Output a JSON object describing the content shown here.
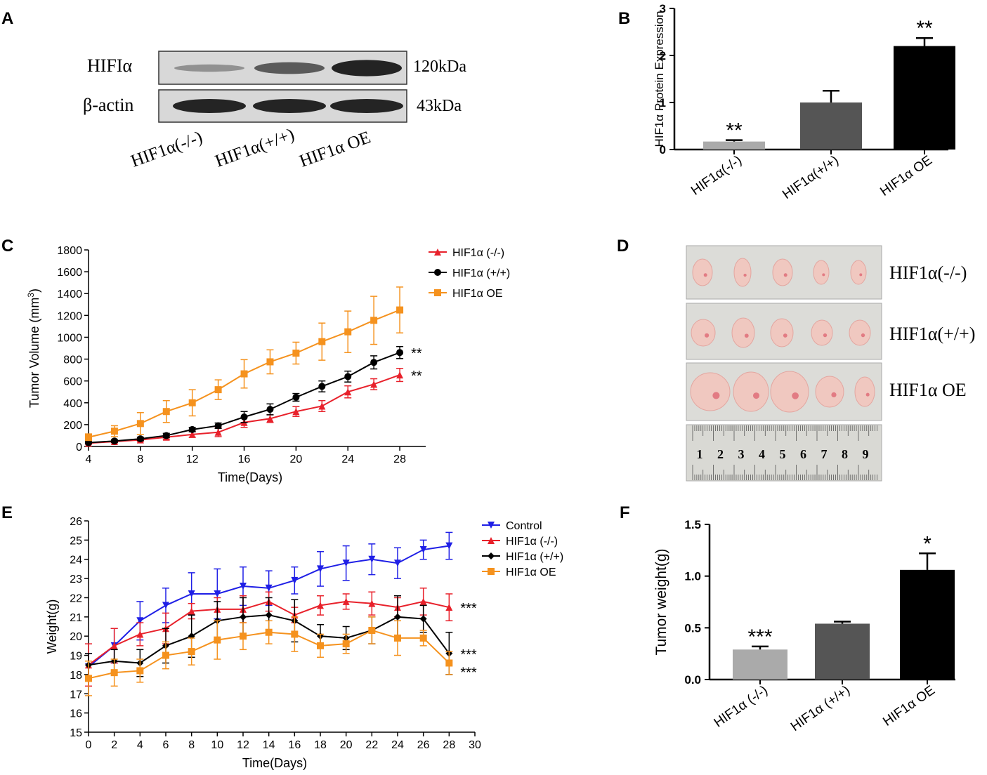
{
  "panels": {
    "A": {
      "letter": "A",
      "rows": [
        {
          "label": "HIFIα",
          "size": "120kDa"
        },
        {
          "label": "β-actin",
          "size": "43kDa"
        }
      ],
      "lanes": [
        "HIF1α(-/-)",
        "HIF1α(+/+)",
        "HIF1α OE"
      ],
      "band_intensity": {
        "HIFIα": [
          0.15,
          0.55,
          0.95
        ],
        "β-actin": [
          1,
          1,
          1
        ]
      }
    },
    "D": {
      "letter": "D",
      "rows": [
        "HIF1α(-/-)",
        "HIF1α(+/+)",
        "HIF1α OE"
      ],
      "ruler_numbers": [
        "1",
        "2",
        "3",
        "4",
        "5",
        "6",
        "7",
        "8",
        "9"
      ],
      "colors": {
        "tumor": "#f0c8c0",
        "tumor_spot": "#d9485a",
        "background": "#dcdcd8",
        "ruler": "#d9d9d4"
      }
    }
  },
  "chart_data": [
    {
      "id": "B",
      "letter": "B",
      "type": "bar",
      "categories": [
        "HIF1α(-/-)",
        "HIF1α(+/+)",
        "HIF1α OE"
      ],
      "values": [
        0.17,
        1.0,
        2.2
      ],
      "errors": [
        0.03,
        0.25,
        0.17
      ],
      "significance": [
        "**",
        "",
        "**"
      ],
      "colors": [
        "#aaaaaa",
        "#555555",
        "#000000"
      ],
      "ylabel": "HIF1α Protein Expression",
      "xlabel": "",
      "ylim": [
        0,
        3
      ],
      "yticks": [
        "0",
        "1",
        "2",
        "3"
      ]
    },
    {
      "id": "C",
      "letter": "C",
      "type": "line",
      "x": [
        4,
        6,
        8,
        10,
        12,
        14,
        16,
        18,
        20,
        22,
        24,
        26,
        28
      ],
      "series": [
        {
          "name": "HIF1α (-/-)",
          "color": "#e8212b",
          "marker": "triangle",
          "values": [
            30,
            45,
            60,
            85,
            110,
            130,
            220,
            255,
            320,
            370,
            500,
            570,
            655
          ],
          "errors": [
            10,
            12,
            15,
            20,
            25,
            40,
            45,
            35,
            45,
            50,
            55,
            50,
            60
          ]
        },
        {
          "name": "HIF1α (+/+)",
          "color": "#000000",
          "marker": "circle",
          "values": [
            35,
            50,
            70,
            100,
            155,
            190,
            270,
            340,
            450,
            550,
            640,
            770,
            860
          ],
          "errors": [
            10,
            12,
            15,
            20,
            20,
            25,
            50,
            50,
            35,
            50,
            50,
            60,
            55
          ]
        },
        {
          "name": "HIF1α OE",
          "color": "#f5921e",
          "marker": "square",
          "values": [
            85,
            140,
            210,
            320,
            400,
            520,
            665,
            775,
            855,
            960,
            1050,
            1155,
            1250
          ],
          "errors": [
            30,
            50,
            100,
            100,
            120,
            90,
            130,
            110,
            100,
            170,
            190,
            220,
            210
          ]
        }
      ],
      "annotations": [
        {
          "text": "**",
          "series": "HIF1α (+/+)"
        },
        {
          "text": "**",
          "series": "HIF1α (-/-)"
        }
      ],
      "xlabel": "Time(Days)",
      "ylabel": "Tumor Volume (mm",
      "ylabel_sup": "3",
      "ylabel_end": ")",
      "xlim": [
        4,
        30
      ],
      "ylim": [
        0,
        1800
      ],
      "xticks": [
        "4",
        "8",
        "12",
        "16",
        "20",
        "24",
        "28"
      ],
      "yticks": [
        "0",
        "200",
        "400",
        "600",
        "800",
        "1000",
        "1200",
        "1400",
        "1600",
        "1800"
      ]
    },
    {
      "id": "E",
      "letter": "E",
      "type": "line",
      "x": [
        0,
        2,
        4,
        6,
        8,
        10,
        12,
        14,
        16,
        18,
        20,
        22,
        24,
        26,
        28
      ],
      "series": [
        {
          "name": "Control",
          "color": "#1f1fe6",
          "marker": "triangle-down",
          "values": [
            18.4,
            19.5,
            20.8,
            21.6,
            22.2,
            22.2,
            22.6,
            22.5,
            22.9,
            23.5,
            23.8,
            24.0,
            23.8,
            24.5,
            24.7
          ],
          "errors": [
            0.7,
            0.9,
            1.0,
            0.9,
            1.1,
            1.3,
            1.0,
            0.9,
            0.7,
            0.9,
            0.9,
            0.8,
            0.8,
            0.5,
            0.7
          ]
        },
        {
          "name": "HIF1α (-/-)",
          "color": "#e8212b",
          "marker": "triangle",
          "values": [
            18.5,
            19.5,
            20.1,
            20.4,
            21.3,
            21.4,
            21.4,
            21.8,
            21.1,
            21.6,
            21.8,
            21.7,
            21.5,
            21.8,
            21.5
          ],
          "errors": [
            1.1,
            0.9,
            0.6,
            0.8,
            0.4,
            0.6,
            0.7,
            0.5,
            0.4,
            0.5,
            0.4,
            0.6,
            0.5,
            0.7,
            0.7
          ]
        },
        {
          "name": "HIF1α (+/+)",
          "color": "#000000",
          "marker": "diamond",
          "values": [
            18.5,
            18.7,
            18.6,
            19.5,
            20.0,
            20.8,
            21.0,
            21.1,
            20.8,
            20.0,
            19.9,
            20.3,
            21.0,
            20.9,
            19.1
          ],
          "errors": [
            0.6,
            0.6,
            0.7,
            0.9,
            1.1,
            1.0,
            1.0,
            0.9,
            1.1,
            0.6,
            0.6,
            0.7,
            1.1,
            0.7,
            1.1
          ]
        },
        {
          "name": "HIF1α  OE",
          "color": "#f5921e",
          "marker": "square",
          "values": [
            17.8,
            18.1,
            18.2,
            19.0,
            19.2,
            19.8,
            20.0,
            20.2,
            20.1,
            19.5,
            19.6,
            20.3,
            19.9,
            19.9,
            18.6
          ],
          "errors": [
            0.9,
            0.7,
            0.6,
            0.7,
            0.7,
            1.0,
            0.7,
            0.6,
            0.9,
            0.6,
            0.5,
            0.7,
            0.9,
            0.4,
            0.6
          ]
        }
      ],
      "annotations": [
        {
          "text": "***",
          "series": "HIF1α (-/-)"
        },
        {
          "text": "***",
          "series": "HIF1α (+/+)"
        },
        {
          "text": "***",
          "series": "HIF1α  OE"
        }
      ],
      "xlabel": "Time(Days)",
      "ylabel": "Weight(g)",
      "xlim": [
        0,
        30
      ],
      "ylim": [
        15,
        26
      ],
      "xticks": [
        "0",
        "2",
        "4",
        "6",
        "8",
        "10",
        "12",
        "14",
        "16",
        "18",
        "20",
        "22",
        "24",
        "26",
        "28",
        "30"
      ],
      "yticks": [
        "15",
        "16",
        "17",
        "18",
        "19",
        "20",
        "21",
        "22",
        "23",
        "24",
        "25",
        "26"
      ]
    },
    {
      "id": "F",
      "letter": "F",
      "type": "bar",
      "categories": [
        "HIF1α (-/-)",
        "HIF1α (+/+)",
        "HIF1α OE"
      ],
      "values": [
        0.29,
        0.54,
        1.06
      ],
      "errors": [
        0.03,
        0.02,
        0.16
      ],
      "significance": [
        "***",
        "",
        "*"
      ],
      "colors": [
        "#aaaaaa",
        "#555555",
        "#000000"
      ],
      "ylabel": "Tumor weight(g)",
      "xlabel": "",
      "ylim": [
        0,
        1.5
      ],
      "yticks": [
        "0.0",
        "0.5",
        "1.0",
        "1.5"
      ]
    }
  ]
}
